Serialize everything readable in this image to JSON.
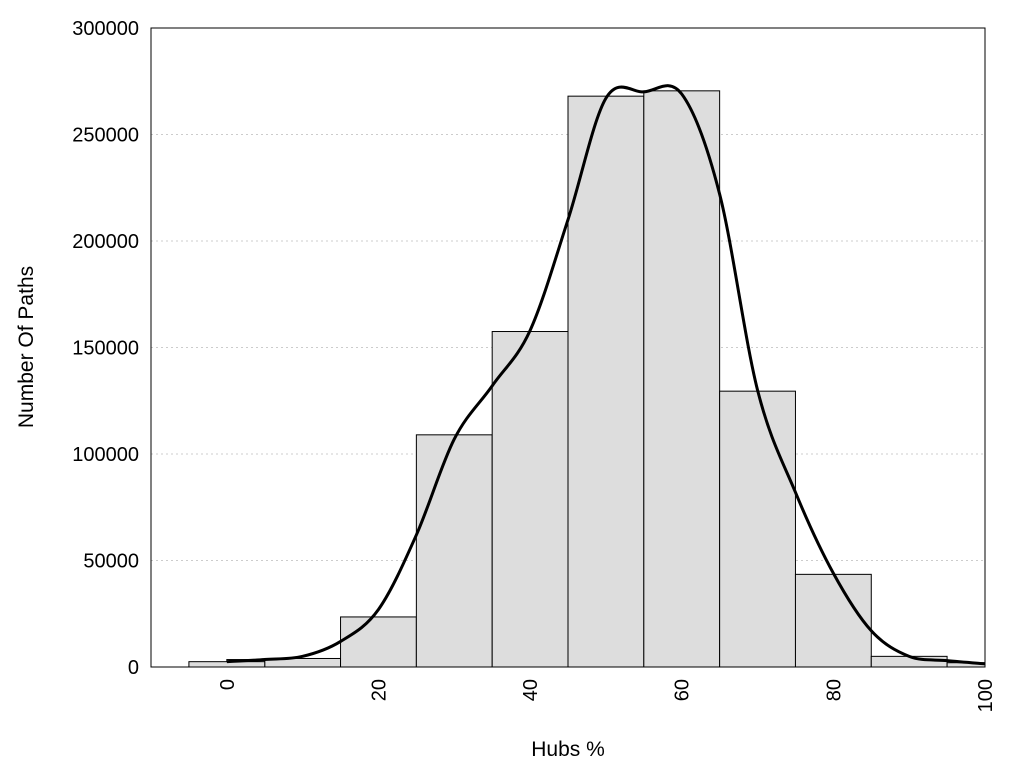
{
  "chart_data": {
    "type": "bar",
    "title": "",
    "xlabel": "Hubs %",
    "ylabel": "Number Of Paths",
    "xlim": [
      -10,
      100
    ],
    "ylim": [
      0,
      300000
    ],
    "xticks": [
      "0",
      "20",
      "40",
      "60",
      "80",
      "100"
    ],
    "yticks": [
      "0",
      "50000",
      "100000",
      "150000",
      "200000",
      "250000",
      "300000"
    ],
    "grid": "horizontal-dotted",
    "bins": [
      {
        "center": 0,
        "value": 2500
      },
      {
        "center": 5,
        "value": 3500
      },
      {
        "center": 10,
        "value": 4000
      },
      {
        "center": 20,
        "value": 23500
      },
      {
        "center": 30,
        "value": 109000
      },
      {
        "center": 40,
        "value": 157500
      },
      {
        "center": 50,
        "value": 268000
      },
      {
        "center": 60,
        "value": 270500
      },
      {
        "center": 70,
        "value": 129500
      },
      {
        "center": 80,
        "value": 43500
      },
      {
        "center": 90,
        "value": 5000
      },
      {
        "center": 100,
        "value": 2000
      }
    ],
    "bin_width": 10,
    "curve": {
      "x": [
        0,
        5,
        10,
        15,
        20,
        25,
        30,
        35,
        40,
        45,
        50,
        55,
        60,
        65,
        70,
        75,
        80,
        85,
        90,
        95,
        100
      ],
      "y": [
        2500,
        3500,
        5000,
        12000,
        27000,
        62000,
        107000,
        132000,
        158000,
        210000,
        267000,
        270000,
        269000,
        222000,
        130000,
        82000,
        44000,
        17000,
        5000,
        3000,
        1500
      ]
    },
    "colors": {
      "bar_fill": "#dddddd",
      "bar_stroke": "#000000",
      "curve": "#000000",
      "grid": "#cccccc"
    }
  }
}
